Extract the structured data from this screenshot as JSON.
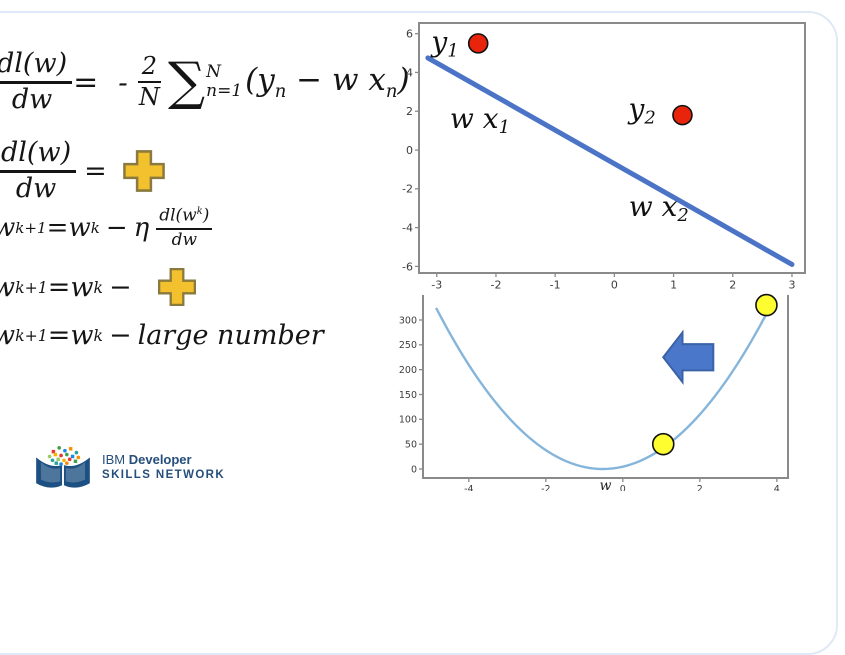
{
  "formulas": {
    "gradient": {
      "num": "dl(w)",
      "den": "dw",
      "eq": "=",
      "neg": "-",
      "coef_num": "2",
      "coef_den": "N",
      "sigma": "∑",
      "sigma_sup": "N",
      "sigma_sub": "n=1",
      "t1": "(y",
      "s1": "n",
      "t2": " − w x",
      "s2": "n",
      "t3": ")"
    },
    "gradient_unknown": {
      "num": "dl(w)",
      "den": "dw",
      "eq": "="
    },
    "update_rule": {
      "w1": "w",
      "sup1": "k+1",
      "eq": "=",
      "w2": "w",
      "sup2": "k",
      "minus": "−",
      "eta": "η",
      "num_t1": "dl(w",
      "num_sup": "k",
      "num_t2": ")",
      "den": "dw"
    },
    "update_unknown": {
      "w1": "w",
      "sup1": "k+1",
      "eq": "=",
      "w2": "w",
      "sup2": "k",
      "minus": "−"
    },
    "update_large": {
      "w1": "w",
      "sup1": "k+1",
      "eq": "=",
      "w2": "w",
      "sup2": "k",
      "minus": "−",
      "text": "large number"
    }
  },
  "logo": {
    "line1_prefix": "IBM ",
    "line1_bold": "Developer",
    "line2": "SKILLS NETWORK"
  },
  "colors": {
    "accent_line_blue": "#4b74c6",
    "loss_curve_blue": "#85b5da",
    "red_point": "#e8250c",
    "yellow_point": "#fdfd30",
    "plus_fill": "#f3c12e",
    "plus_stroke": "#8a7a3d",
    "arrow_blue": "#4a77c9",
    "axis_gray": "#8a8a8a",
    "frame_border": "#dfe9f7",
    "logo_navy": "#254e7b",
    "logo_dots": [
      "#e53935",
      "#43a047",
      "#1e88e5",
      "#fb8c00",
      "#26a69a",
      "#9ccc65",
      "#f4b400"
    ]
  },
  "chart_data": [
    {
      "type": "line",
      "title": "",
      "xlabel": "",
      "ylabel": "",
      "xlim": [
        -3.3,
        3.22
      ],
      "ylim": [
        -6.34,
        6.55
      ],
      "xticks": [
        -3,
        -2,
        -1,
        0,
        1,
        2,
        3
      ],
      "yticks": [
        -6,
        -4,
        -2,
        0,
        2,
        4,
        6
      ],
      "grid": false,
      "legend": false,
      "series": [
        {
          "name": "model-line-wx",
          "color": "#4b74c6",
          "width": 5,
          "points": [
            [
              -3.15,
              4.75
            ],
            [
              3.0,
              -5.9
            ]
          ]
        }
      ],
      "markers": [
        {
          "name": "y1-point",
          "x": -2.3,
          "y": 5.5,
          "r": 9.5,
          "fill": "#e8250c",
          "stroke": "#111111"
        },
        {
          "name": "y2-point",
          "x": 1.15,
          "y": 1.8,
          "r": 9.5,
          "fill": "#e8250c",
          "stroke": "#111111"
        }
      ],
      "annotations": [
        {
          "base": "y",
          "sub": "1",
          "x": -2.86,
          "y": 5.5
        },
        {
          "base": "w x",
          "sub": "1",
          "x": -2.27,
          "y": 1.55
        },
        {
          "base": "y",
          "sub": "2",
          "x": 0.47,
          "y": 2.05
        },
        {
          "base": "w x",
          "sub": "2",
          "x": 0.75,
          "y": -3.0
        }
      ]
    },
    {
      "type": "line",
      "title": "",
      "xlabel": "w",
      "ylabel": "",
      "xlim": [
        -5.19,
        4.29
      ],
      "ylim": [
        -18.1,
        350.3
      ],
      "xticks": [
        -4,
        -2,
        0,
        2,
        4
      ],
      "yticks": [
        0,
        50,
        100,
        150,
        200,
        250,
        300
      ],
      "grid": false,
      "legend": false,
      "curve": {
        "name": "loss-parabola",
        "form": "parabola",
        "a": 17.3,
        "x0": -0.52,
        "x_from": -4.85,
        "x_to": 3.83,
        "color": "#85b5da",
        "width": 2.4
      },
      "markers": [
        {
          "name": "w-current-point",
          "x": 3.73,
          "y": 330,
          "r": 10.5,
          "fill": "#fdfd30",
          "stroke": "#111111"
        },
        {
          "name": "w-next-point",
          "x": 1.05,
          "y": 50,
          "r": 10.5,
          "fill": "#fdfd30",
          "stroke": "#111111"
        }
      ],
      "arrow": {
        "direction": "left",
        "x_tip": 1.05,
        "x_tail": 2.35,
        "y_center": 225,
        "head_height": 100,
        "body_height": 53,
        "head_length": 0.5,
        "fill": "#4a77c9",
        "stroke": "#3a62a8"
      }
    }
  ]
}
